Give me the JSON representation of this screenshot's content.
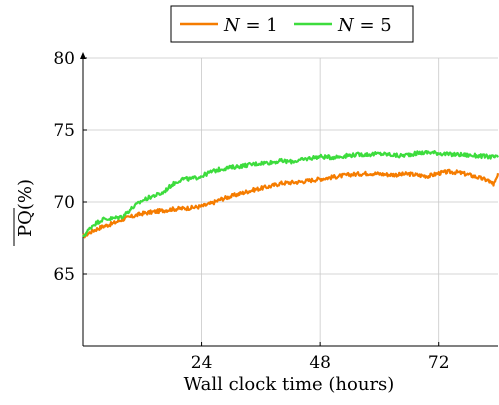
{
  "chart_data": {
    "type": "line",
    "xlabel": "Wall clock time (hours)",
    "ylabel": "PQ(%)",
    "xlim": [
      0,
      84
    ],
    "ylim": [
      60,
      80
    ],
    "xticks": [
      24,
      48,
      72
    ],
    "yticks": [
      65,
      70,
      75,
      80
    ],
    "grid": true,
    "legend_position": "top-center",
    "series": [
      {
        "name": "N = 1",
        "legend_var": "N",
        "legend_val": "1",
        "color": "#f57c00",
        "x": [
          0,
          2,
          4,
          6,
          8,
          10,
          12,
          14,
          16,
          18,
          20,
          22,
          24,
          26,
          28,
          30,
          32,
          34,
          36,
          38,
          40,
          42,
          44,
          46,
          48,
          50,
          52,
          54,
          56,
          58,
          60,
          62,
          64,
          66,
          68,
          70,
          72,
          74,
          76,
          78,
          80,
          82,
          83,
          84
        ],
        "y": [
          67.6,
          68.0,
          68.3,
          68.5,
          68.8,
          69.0,
          69.2,
          69.3,
          69.4,
          69.5,
          69.55,
          69.6,
          69.7,
          69.9,
          70.2,
          70.4,
          70.6,
          70.8,
          70.95,
          71.1,
          71.3,
          71.35,
          71.4,
          71.5,
          71.6,
          71.7,
          71.8,
          71.9,
          71.95,
          72.0,
          71.95,
          71.9,
          71.9,
          71.95,
          71.85,
          71.8,
          72.0,
          72.1,
          72.05,
          71.9,
          71.7,
          71.5,
          71.2,
          72.0
        ]
      },
      {
        "name": "N = 5",
        "legend_var": "N",
        "legend_val": "5",
        "color": "#3ddc3d",
        "x": [
          0,
          2,
          4,
          6,
          8,
          10,
          12,
          14,
          16,
          18,
          20,
          22,
          24,
          26,
          28,
          30,
          32,
          34,
          36,
          38,
          40,
          42,
          44,
          46,
          48,
          50,
          52,
          54,
          56,
          58,
          60,
          62,
          64,
          66,
          68,
          70,
          72,
          74,
          76,
          78,
          80,
          82,
          84
        ],
        "y": [
          67.6,
          68.4,
          68.8,
          68.85,
          69.0,
          69.6,
          70.1,
          70.4,
          70.6,
          71.2,
          71.6,
          71.6,
          71.8,
          72.1,
          72.3,
          72.4,
          72.5,
          72.6,
          72.7,
          72.75,
          72.85,
          72.8,
          72.9,
          73.05,
          73.15,
          73.1,
          73.15,
          73.25,
          73.3,
          73.3,
          73.35,
          73.3,
          73.2,
          73.3,
          73.4,
          73.45,
          73.4,
          73.3,
          73.3,
          73.25,
          73.2,
          73.15,
          73.1
        ]
      }
    ]
  }
}
